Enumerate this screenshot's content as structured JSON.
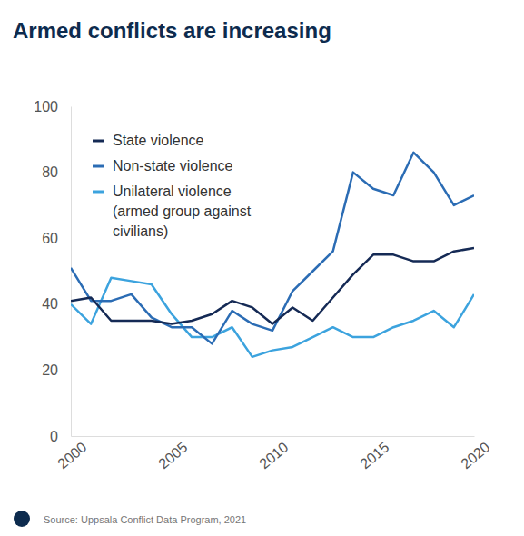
{
  "chart_data": {
    "type": "line",
    "title": "Armed conflicts are increasing",
    "source": "Source: Uppsala Conflict Data Program, 2021",
    "x": [
      2000,
      2001,
      2002,
      2003,
      2004,
      2005,
      2006,
      2007,
      2008,
      2009,
      2010,
      2011,
      2012,
      2013,
      2014,
      2015,
      2016,
      2017,
      2018,
      2019,
      2020
    ],
    "series": [
      {
        "name": "State violence",
        "color": "#152a55",
        "values": [
          41,
          42,
          35,
          35,
          35,
          34,
          35,
          37,
          41,
          39,
          34,
          39,
          35,
          42,
          49,
          55,
          55,
          53,
          53,
          56,
          57
        ]
      },
      {
        "name": "Non-state violence",
        "color": "#2b6cb4",
        "values": [
          51,
          41,
          41,
          43,
          36,
          33,
          33,
          28,
          38,
          34,
          32,
          44,
          50,
          56,
          80,
          75,
          73,
          86,
          80,
          70,
          73
        ]
      },
      {
        "name": "Unilateral violence (armed group against civilians)",
        "color": "#3ca3de",
        "values": [
          40,
          34,
          48,
          47,
          46,
          37,
          30,
          30,
          33,
          24,
          26,
          27,
          30,
          33,
          30,
          30,
          33,
          35,
          38,
          33,
          43
        ]
      }
    ],
    "xlim": [
      2000,
      2020
    ],
    "xticks": [
      2000,
      2005,
      2010,
      2015,
      2020
    ],
    "ylim": [
      0,
      100
    ],
    "yticks": [
      0,
      20,
      40,
      60,
      80,
      100
    ],
    "grid": false,
    "legend": "upper left"
  }
}
